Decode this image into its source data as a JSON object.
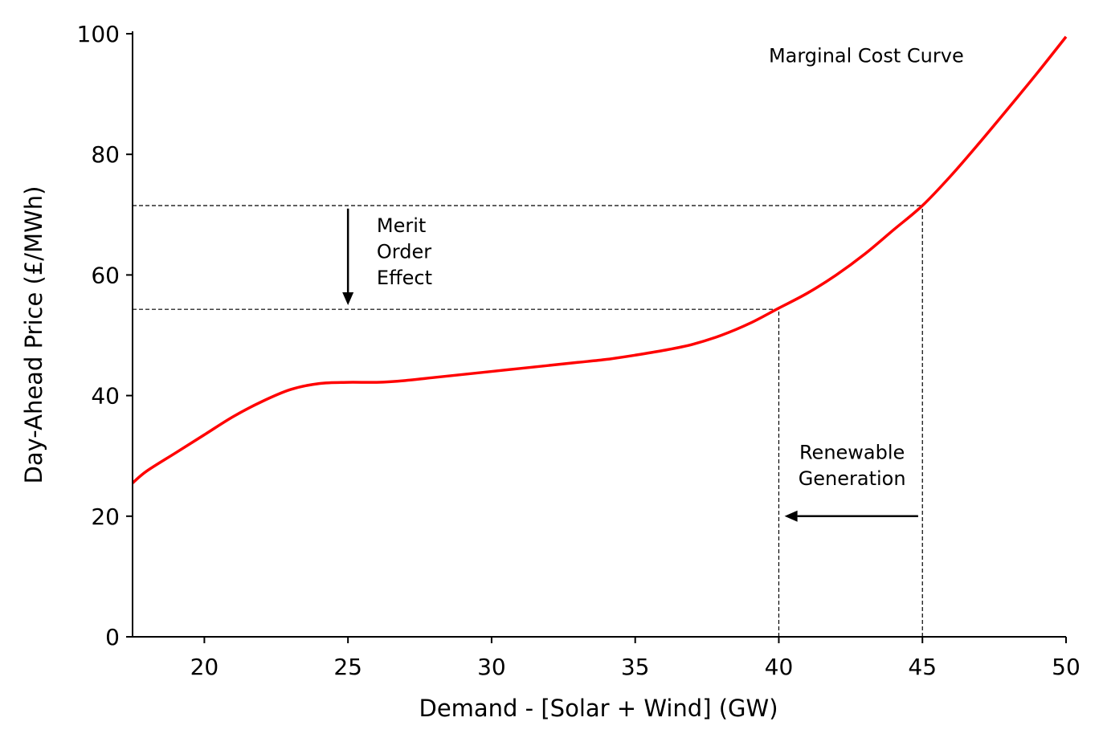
{
  "chart_data": {
    "type": "line",
    "title": "",
    "xlabel": "Demand - [Solar + Wind] (GW)",
    "ylabel": "Day-Ahead Price (£/MWh)",
    "xlim": [
      17.5,
      50
    ],
    "ylim": [
      0,
      100
    ],
    "grid": false,
    "x_ticks": [
      20,
      25,
      30,
      35,
      40,
      45,
      50
    ],
    "x_tick_labels": [
      "20",
      "25",
      "30",
      "35",
      "40",
      "45",
      "50"
    ],
    "y_ticks": [
      0,
      20,
      40,
      60,
      80,
      100
    ],
    "y_tick_labels": [
      "0",
      "20",
      "40",
      "60",
      "80",
      "100"
    ],
    "series": [
      {
        "color": "#ff0000",
        "x": [
          17.5,
          18,
          19,
          20,
          21,
          22,
          23,
          24,
          25,
          26,
          27,
          28,
          29,
          30,
          31,
          32,
          33,
          34,
          35,
          36,
          37,
          38,
          39,
          40,
          41,
          42,
          43,
          44,
          45,
          46,
          47,
          48,
          49,
          50
        ],
        "y": [
          25.5,
          27.5,
          30.5,
          33.5,
          36.5,
          39,
          41,
          42,
          42.2,
          42.2,
          42.5,
          43,
          43.5,
          44,
          44.5,
          45,
          45.5,
          46,
          46.7,
          47.5,
          48.5,
          50,
          52,
          54.5,
          57,
          60,
          63.5,
          67.5,
          71.5,
          76.5,
          82,
          87.7,
          93.5,
          99.5
        ]
      }
    ],
    "reference_lines": [
      {
        "kind": "horizontal",
        "y": 71.5,
        "x_from": 17.5,
        "x_to": 45
      },
      {
        "kind": "horizontal",
        "y": 54.3,
        "x_from": 17.5,
        "x_to": 40
      },
      {
        "kind": "vertical",
        "x": 40,
        "y_from": 0,
        "y_to": 54.3
      },
      {
        "kind": "vertical",
        "x": 45,
        "y_from": 0,
        "y_to": 71.5
      }
    ],
    "arrows": [
      {
        "from": [
          25,
          71
        ],
        "to": [
          25,
          55
        ]
      },
      {
        "from": [
          44.85,
          20
        ],
        "to": [
          40.2,
          20
        ]
      }
    ],
    "annotations": [
      {
        "lines": [
          "Marginal Cost Curve"
        ],
        "x": 39.65,
        "y": 95.3
      },
      {
        "lines": [
          "Merit",
          "Order",
          "Effect"
        ],
        "x": 26,
        "y": 67.1
      },
      {
        "lines": [
          "Renewable",
          "Generation"
        ],
        "x": 42.55,
        "y": 29.5,
        "align": "middle"
      }
    ]
  }
}
